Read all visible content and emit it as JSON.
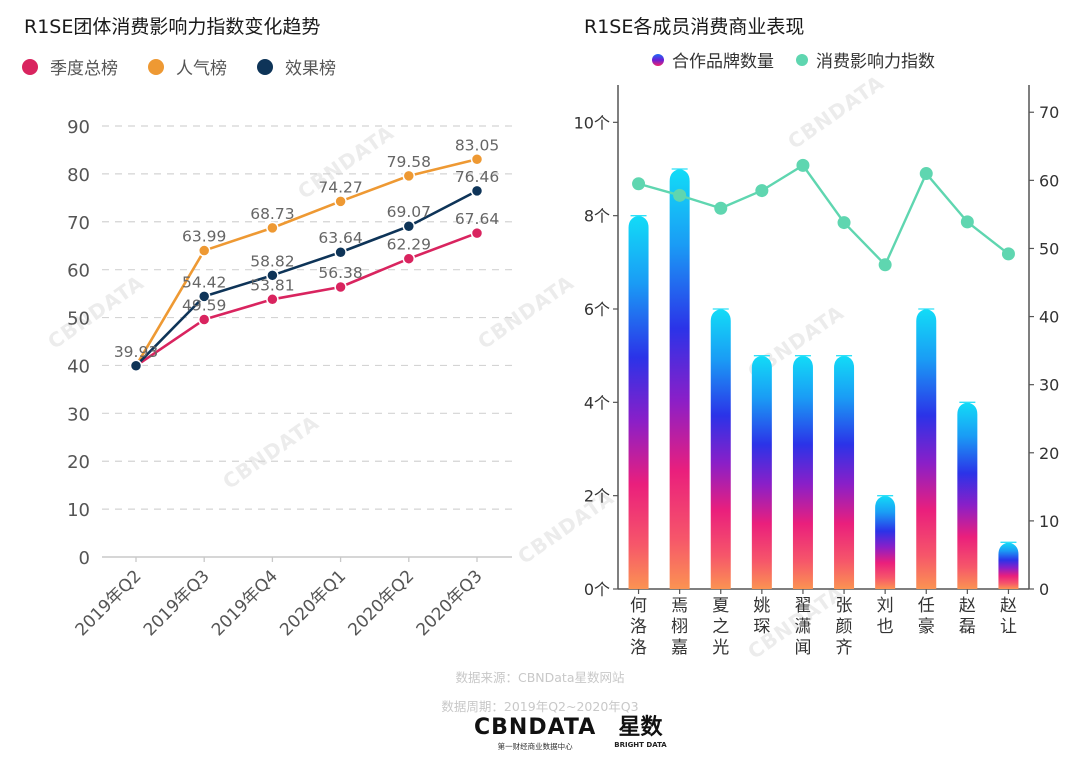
{
  "left_chart": {
    "title": "R1SE团体消费影响力指数变化趋势",
    "legend": [
      {
        "label": "季度总榜",
        "color": "#d9245f"
      },
      {
        "label": "人气榜",
        "color": "#ee9933"
      },
      {
        "label": "效果榜",
        "color": "#0e3458"
      }
    ]
  },
  "right_chart": {
    "title": "R1SE各成员消费商业表现",
    "legend": [
      {
        "label": "合作品牌数量",
        "color_gradient": [
          "#1e6cf5",
          "#6a1fd6",
          "#f0246a"
        ]
      },
      {
        "label": "消费影响力指数",
        "color": "#5fd6b0"
      }
    ]
  },
  "footer": {
    "source": "数据来源：CBNData星数网站",
    "period": "数据周期：2019年Q2~2020年Q3",
    "logo_cbn": "CBNDATA",
    "logo_cbn_sub": "第一财经商业数据中心",
    "logo_xs": "星数",
    "logo_xs_sub": "BRIGHT DATA",
    "watermark": "CBNDATA"
  },
  "chart_data": [
    {
      "type": "line",
      "title": "R1SE团体消费影响力指数变化趋势",
      "x": [
        "2019年Q2",
        "2019年Q3",
        "2019年Q4",
        "2020年Q1",
        "2020年Q2",
        "2020年Q3"
      ],
      "series": [
        {
          "name": "季度总榜",
          "color": "#d9245f",
          "values": [
            39.93,
            49.59,
            53.81,
            56.38,
            62.29,
            67.64
          ]
        },
        {
          "name": "人气榜",
          "color": "#ee9933",
          "values": [
            39.93,
            63.99,
            68.73,
            74.27,
            79.58,
            83.05
          ]
        },
        {
          "name": "效果榜",
          "color": "#0e3458",
          "values": [
            39.93,
            54.42,
            58.82,
            63.64,
            69.07,
            76.46
          ]
        }
      ],
      "data_labels": [
        {
          "series": "效果榜",
          "index": 0,
          "text": "39.93"
        },
        {
          "series": "季度总榜",
          "index": 1,
          "text": "49.59"
        },
        {
          "series": "效果榜",
          "index": 1,
          "text": "54.42"
        },
        {
          "series": "人气榜",
          "index": 1,
          "text": "63.99"
        },
        {
          "series": "季度总榜",
          "index": 2,
          "text": "53.81"
        },
        {
          "series": "效果榜",
          "index": 2,
          "text": "58.82"
        },
        {
          "series": "人气榜",
          "index": 2,
          "text": "68.73"
        },
        {
          "series": "季度总榜",
          "index": 3,
          "text": "56.38"
        },
        {
          "series": "效果榜",
          "index": 3,
          "text": "63.64"
        },
        {
          "series": "人气榜",
          "index": 3,
          "text": "74.27"
        },
        {
          "series": "季度总榜",
          "index": 4,
          "text": "62.29"
        },
        {
          "series": "效果榜",
          "index": 4,
          "text": "69.07"
        },
        {
          "series": "人气榜",
          "index": 4,
          "text": "79.58"
        },
        {
          "series": "季度总榜",
          "index": 5,
          "text": "67.64"
        },
        {
          "series": "效果榜",
          "index": 5,
          "text": "76.46"
        },
        {
          "series": "人气榜",
          "index": 5,
          "text": "83.05"
        }
      ],
      "ylim": [
        0,
        90
      ],
      "yticks": [
        0,
        10,
        20,
        30,
        40,
        50,
        60,
        70,
        80,
        90
      ],
      "grid": true,
      "legend_position": "top-left",
      "xlabel": "",
      "ylabel": ""
    },
    {
      "type": "bar",
      "title": "R1SE各成员消费商业表现",
      "categories": [
        "何洛洛",
        "焉栩嘉",
        "夏之光",
        "姚琛",
        "翟潇闻",
        "张颜齐",
        "刘也",
        "任豪",
        "赵磊",
        "赵让"
      ],
      "series": [
        {
          "name": "合作品牌数量",
          "type": "bar",
          "axis": "left",
          "values": [
            8,
            9,
            6,
            5,
            5,
            5,
            2,
            6,
            4,
            1
          ]
        },
        {
          "name": "消费影响力指数",
          "type": "line",
          "axis": "right",
          "color": "#5fd6b0",
          "values": [
            59.5,
            57.8,
            55.9,
            58.5,
            62.2,
            53.8,
            47.6,
            61.0,
            53.9,
            49.2
          ]
        }
      ],
      "y_left": {
        "ylim": [
          0,
          10.8
        ],
        "ticks": [
          0,
          2,
          4,
          6,
          8,
          10
        ],
        "tick_suffix": "个"
      },
      "y_right": {
        "ylim": [
          0,
          74
        ],
        "ticks": [
          0,
          10,
          20,
          30,
          40,
          50,
          60,
          70
        ]
      },
      "grid": false,
      "legend_position": "top-center"
    }
  ]
}
